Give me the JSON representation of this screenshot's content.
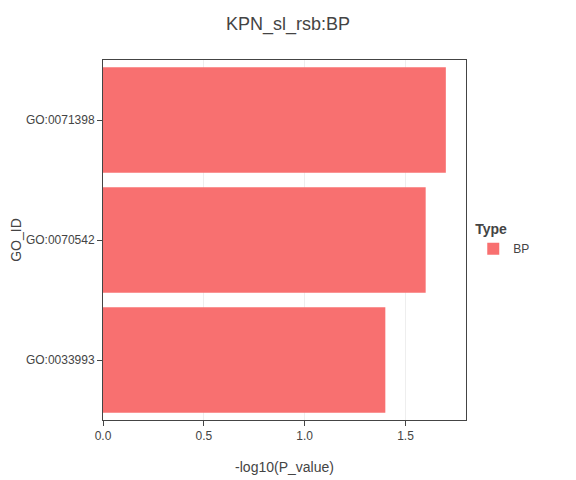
{
  "chart_data": {
    "type": "bar",
    "orientation": "horizontal",
    "title": "KPN_sl_rsb:BP",
    "xlabel": "-log10(P_value)",
    "ylabel": "GO_ID",
    "categories": [
      "GO:0033993",
      "GO:0070542",
      "GO:0071398"
    ],
    "series": [
      {
        "name": "BP",
        "color": "#F87070",
        "values": [
          1.4,
          1.6,
          1.7
        ]
      }
    ],
    "xlim": [
      0,
      1.8
    ],
    "xticks": [
      {
        "value": 0.0,
        "label": "0.0"
      },
      0.5,
      {
        "value": 1.0,
        "label": "1.0"
      },
      1.5
    ],
    "grid": true,
    "legend": "right",
    "legend_title": "Type"
  }
}
